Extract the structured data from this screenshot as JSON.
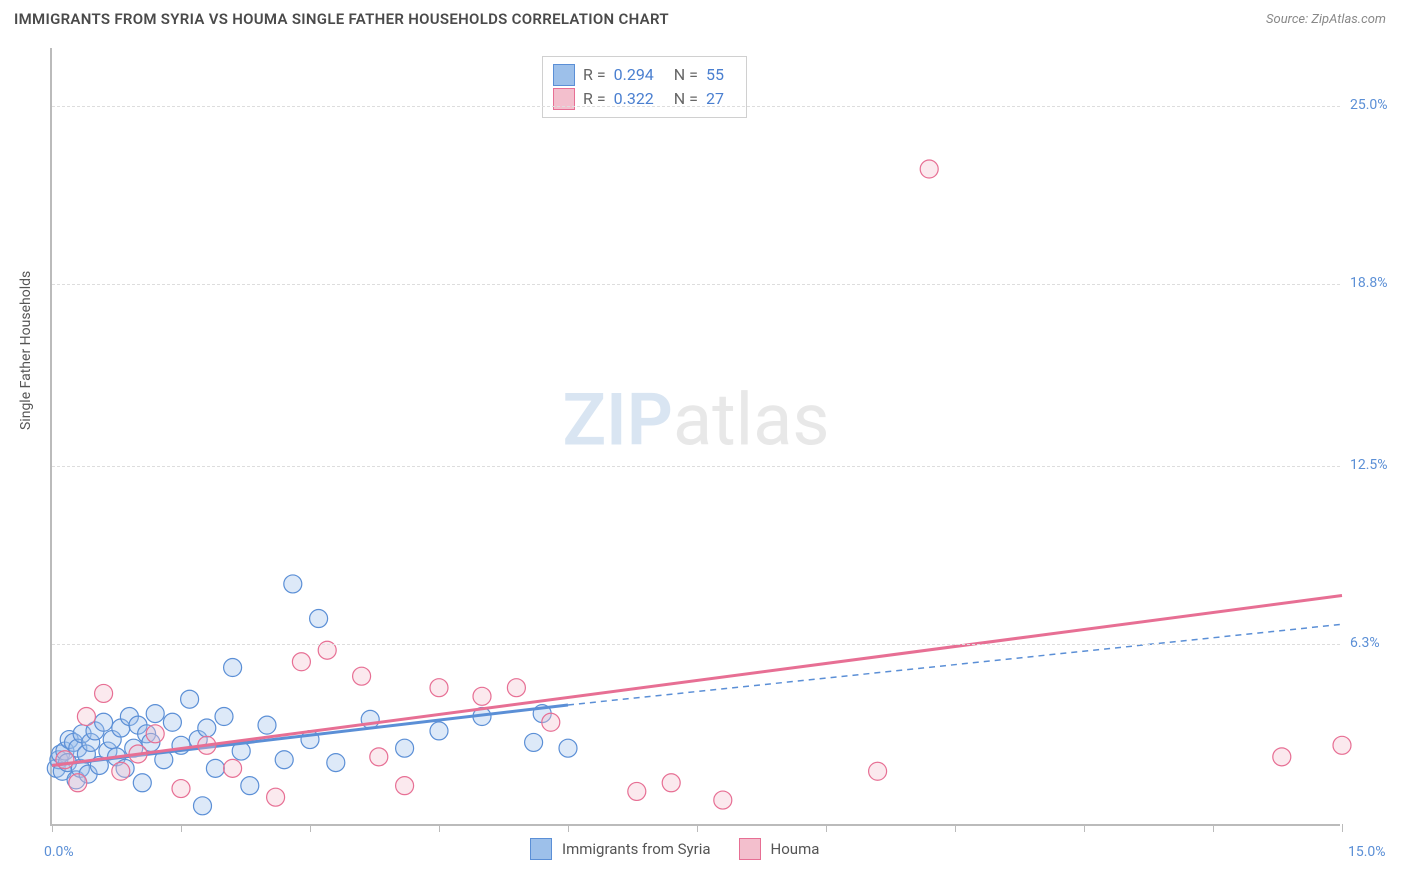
{
  "title": "IMMIGRANTS FROM SYRIA VS HOUMA SINGLE FATHER HOUSEHOLDS CORRELATION CHART",
  "source_label": "Source: ZipAtlas.com",
  "watermark": {
    "left": "ZIP",
    "right": "atlas"
  },
  "ylabel": "Single Father Households",
  "chart": {
    "type": "scatter",
    "xlim": [
      0.0,
      15.0
    ],
    "ylim": [
      0.0,
      27.0
    ],
    "y_ticks": [
      6.3,
      12.5,
      18.8,
      25.0
    ],
    "y_tick_labels": [
      "6.3%",
      "12.5%",
      "18.8%",
      "25.0%"
    ],
    "x_tick_positions": [
      0,
      1.5,
      3.0,
      4.5,
      6.0,
      7.5,
      9.0,
      10.5,
      12.0,
      13.5,
      15.0
    ],
    "x_left_label": "0.0%",
    "x_right_label": "15.0%",
    "grid_color": "#dddddd",
    "axis_color": "#bbbbbb",
    "background_color": "#ffffff",
    "marker_radius": 9,
    "marker_stroke_width": 1.2,
    "marker_fill_opacity": 0.35,
    "series": [
      {
        "name": "Immigrants from Syria",
        "color_fill": "#9dc0ea",
        "color_stroke": "#5b8fd6",
        "trend_solid": {
          "x1": 0.0,
          "y1": 2.1,
          "x2": 6.0,
          "y2": 4.2,
          "width": 3
        },
        "trend_dashed": {
          "x1": 6.0,
          "y1": 4.2,
          "x2": 15.0,
          "y2": 7.0,
          "width": 1.5,
          "dash": "6 5"
        },
        "points": [
          [
            0.05,
            2.0
          ],
          [
            0.08,
            2.3
          ],
          [
            0.1,
            2.5
          ],
          [
            0.12,
            1.9
          ],
          [
            0.15,
            2.6
          ],
          [
            0.18,
            2.2
          ],
          [
            0.2,
            3.0
          ],
          [
            0.25,
            2.9
          ],
          [
            0.28,
            1.6
          ],
          [
            0.3,
            2.7
          ],
          [
            0.33,
            2.0
          ],
          [
            0.35,
            3.2
          ],
          [
            0.4,
            2.5
          ],
          [
            0.42,
            1.8
          ],
          [
            0.45,
            2.9
          ],
          [
            0.5,
            3.3
          ],
          [
            0.55,
            2.1
          ],
          [
            0.6,
            3.6
          ],
          [
            0.65,
            2.6
          ],
          [
            0.7,
            3.0
          ],
          [
            0.75,
            2.4
          ],
          [
            0.8,
            3.4
          ],
          [
            0.85,
            2.0
          ],
          [
            0.9,
            3.8
          ],
          [
            0.95,
            2.7
          ],
          [
            1.0,
            3.5
          ],
          [
            1.05,
            1.5
          ],
          [
            1.1,
            3.2
          ],
          [
            1.15,
            2.9
          ],
          [
            1.2,
            3.9
          ],
          [
            1.3,
            2.3
          ],
          [
            1.4,
            3.6
          ],
          [
            1.5,
            2.8
          ],
          [
            1.6,
            4.4
          ],
          [
            1.7,
            3.0
          ],
          [
            1.75,
            0.7
          ],
          [
            1.8,
            3.4
          ],
          [
            1.9,
            2.0
          ],
          [
            2.0,
            3.8
          ],
          [
            2.1,
            5.5
          ],
          [
            2.2,
            2.6
          ],
          [
            2.3,
            1.4
          ],
          [
            2.5,
            3.5
          ],
          [
            2.7,
            2.3
          ],
          [
            2.8,
            8.4
          ],
          [
            3.0,
            3.0
          ],
          [
            3.1,
            7.2
          ],
          [
            3.3,
            2.2
          ],
          [
            3.7,
            3.7
          ],
          [
            4.1,
            2.7
          ],
          [
            4.5,
            3.3
          ],
          [
            5.0,
            3.8
          ],
          [
            5.6,
            2.9
          ],
          [
            5.7,
            3.9
          ],
          [
            6.0,
            2.7
          ]
        ]
      },
      {
        "name": "Houma",
        "color_fill": "#f3bfcd",
        "color_stroke": "#e76f94",
        "trend_solid": {
          "x1": 0.0,
          "y1": 2.1,
          "x2": 15.0,
          "y2": 8.0,
          "width": 3
        },
        "points": [
          [
            0.15,
            2.3
          ],
          [
            0.3,
            1.5
          ],
          [
            0.4,
            3.8
          ],
          [
            0.6,
            4.6
          ],
          [
            0.8,
            1.9
          ],
          [
            1.0,
            2.5
          ],
          [
            1.2,
            3.2
          ],
          [
            1.5,
            1.3
          ],
          [
            1.8,
            2.8
          ],
          [
            2.1,
            2.0
          ],
          [
            2.6,
            1.0
          ],
          [
            2.9,
            5.7
          ],
          [
            3.2,
            6.1
          ],
          [
            3.6,
            5.2
          ],
          [
            3.8,
            2.4
          ],
          [
            4.1,
            1.4
          ],
          [
            4.5,
            4.8
          ],
          [
            5.0,
            4.5
          ],
          [
            5.4,
            4.8
          ],
          [
            5.8,
            3.6
          ],
          [
            6.8,
            1.2
          ],
          [
            7.2,
            1.5
          ],
          [
            7.8,
            0.9
          ],
          [
            9.6,
            1.9
          ],
          [
            10.2,
            22.8
          ],
          [
            14.3,
            2.4
          ],
          [
            15.0,
            2.8
          ]
        ]
      }
    ]
  },
  "stats_box": {
    "rows": [
      {
        "swatch_fill": "#9dc0ea",
        "swatch_stroke": "#5b8fd6",
        "r": "0.294",
        "n": "55"
      },
      {
        "swatch_fill": "#f3bfcd",
        "swatch_stroke": "#e76f94",
        "r": "0.322",
        "n": "27"
      }
    ]
  },
  "bottom_legend": [
    {
      "swatch_fill": "#9dc0ea",
      "swatch_stroke": "#5b8fd6",
      "label": "Immigrants from Syria"
    },
    {
      "swatch_fill": "#f3bfcd",
      "swatch_stroke": "#e76f94",
      "label": "Houma"
    }
  ]
}
